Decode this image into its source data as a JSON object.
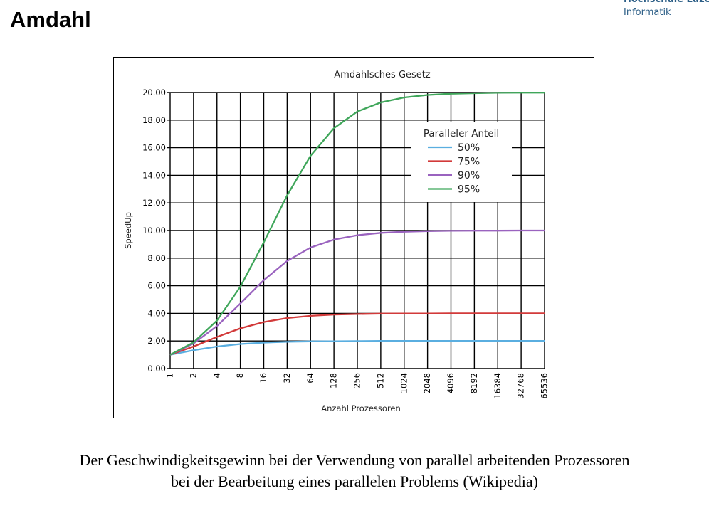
{
  "slide": {
    "title": "Amdahl",
    "logo": {
      "line1": "Hochschule Luze",
      "line2": "Informatik"
    },
    "caption": {
      "line1": "Der Geschwindigkeitsgewinn bei der Verwendung von parallel arbeitenden Prozessoren",
      "line2": "bei der Bearbeitung eines parallelen Problems (Wikipedia)"
    }
  },
  "chart_data": {
    "type": "line",
    "title": "Amdahlsches Gesetz",
    "xlabel": "Anzahl Prozessoren",
    "ylabel": "SpeedUp",
    "x": [
      1,
      2,
      4,
      8,
      16,
      32,
      64,
      128,
      256,
      512,
      1024,
      2048,
      4096,
      8192,
      16384,
      32768,
      65536
    ],
    "x_scale": "log2",
    "ylim": [
      0,
      20
    ],
    "yticks": [
      "0.00",
      "2.00",
      "4.00",
      "6.00",
      "8.00",
      "10.00",
      "12.00",
      "14.00",
      "16.00",
      "18.00",
      "20.00"
    ],
    "grid": true,
    "legend": {
      "title": "Paralleler Anteil",
      "placement": "upper-right"
    },
    "series": [
      {
        "name": "50%",
        "color": "#5aaee0",
        "values": [
          1.0,
          1.33,
          1.6,
          1.78,
          1.88,
          1.94,
          1.97,
          1.98,
          1.99,
          2.0,
          2.0,
          2.0,
          2.0,
          2.0,
          2.0,
          2.0,
          2.0
        ]
      },
      {
        "name": "75%",
        "color": "#d23a3a",
        "values": [
          1.0,
          1.6,
          2.29,
          2.91,
          3.37,
          3.66,
          3.82,
          3.91,
          3.95,
          3.98,
          3.99,
          3.99,
          4.0,
          4.0,
          4.0,
          4.0,
          4.0
        ]
      },
      {
        "name": "90%",
        "color": "#9a63bf",
        "values": [
          1.0,
          1.82,
          3.08,
          4.71,
          6.4,
          7.8,
          8.77,
          9.34,
          9.66,
          9.83,
          9.91,
          9.96,
          9.98,
          9.99,
          9.99,
          10.0,
          10.0
        ]
      },
      {
        "name": "95%",
        "color": "#3fa65a",
        "values": [
          1.0,
          1.9,
          3.48,
          5.93,
          9.14,
          12.55,
          15.42,
          17.41,
          18.62,
          19.28,
          19.64,
          19.82,
          19.91,
          19.95,
          19.98,
          19.99,
          19.99
        ]
      }
    ]
  }
}
